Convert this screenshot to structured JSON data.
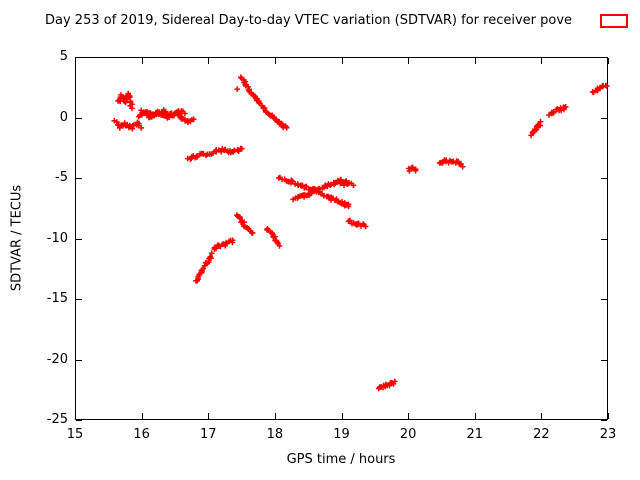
{
  "chart_data": {
    "type": "scatter",
    "title": "Day 253 of 2019, Sidereal Day-to-day VTEC variation (SDTVAR) for receiver pove",
    "xlabel": "GPS time / hours",
    "ylabel": "SDTVAR / TECUs",
    "xlim": [
      15,
      23
    ],
    "ylim": [
      -25,
      5
    ],
    "xticks": [
      15,
      16,
      17,
      18,
      19,
      20,
      21,
      22,
      23
    ],
    "yticks": [
      5,
      0,
      -5,
      -10,
      -15,
      -20,
      -25
    ],
    "grid": false,
    "marker": "+",
    "marker_color": "#ff0000",
    "axis_color": "#000000",
    "legend_position": "top-right-outside",
    "segments": [
      {
        "spread": 0.22,
        "pts": [
          [
            15.66,
            1.15
          ],
          [
            15.7,
            1.85
          ],
          [
            15.75,
            1.35
          ],
          [
            15.8,
            1.9
          ],
          [
            15.84,
            1.15
          ],
          [
            15.87,
            0.95
          ]
        ]
      },
      {
        "spread": 0.16,
        "pts": [
          [
            15.6,
            -0.4
          ],
          [
            15.68,
            -0.7
          ],
          [
            15.76,
            -0.55
          ],
          [
            15.85,
            -0.8
          ],
          [
            15.93,
            -0.55
          ],
          [
            15.99,
            -0.7
          ]
        ]
      },
      {
        "spread": 0.12,
        "pts": [
          [
            15.97,
            0.05
          ],
          [
            16.08,
            0.5
          ],
          [
            16.2,
            0.15
          ],
          [
            16.33,
            0.52
          ],
          [
            16.46,
            0.18
          ],
          [
            16.56,
            0.48
          ],
          [
            16.64,
            0.38
          ]
        ]
      },
      {
        "spread": 0.12,
        "pts": [
          [
            16.0,
            0.5
          ],
          [
            16.12,
            0.05
          ],
          [
            16.25,
            0.45
          ],
          [
            16.38,
            0.0
          ],
          [
            16.5,
            0.38
          ],
          [
            16.6,
            -0.05
          ],
          [
            16.7,
            -0.38
          ],
          [
            16.79,
            -0.15
          ]
        ]
      },
      {
        "spread": 0.12,
        "pts": [
          [
            16.7,
            -3.35
          ],
          [
            16.81,
            -3.22
          ],
          [
            16.92,
            -3.05
          ],
          [
            16.99,
            -3.0
          ]
        ]
      },
      {
        "spread": 0.12,
        "pts": [
          [
            17.03,
            -2.95
          ],
          [
            17.13,
            -2.78
          ],
          [
            17.23,
            -2.68
          ],
          [
            17.33,
            -2.85
          ],
          [
            17.43,
            -2.7
          ],
          [
            17.5,
            -2.6
          ]
        ]
      },
      {
        "spread": 0,
        "pts": [
          [
            17.42,
            2.35
          ]
        ]
      },
      {
        "spread": 0.1,
        "pts": [
          [
            17.5,
            3.3
          ],
          [
            17.56,
            2.75
          ],
          [
            17.63,
            2.15
          ],
          [
            17.72,
            1.5
          ],
          [
            17.82,
            0.85
          ],
          [
            17.92,
            0.3
          ],
          [
            18.02,
            -0.2
          ],
          [
            18.12,
            -0.65
          ],
          [
            18.18,
            -0.88
          ]
        ]
      },
      {
        "spread": 0.12,
        "pts": [
          [
            16.82,
            -13.6
          ],
          [
            16.9,
            -12.8
          ],
          [
            16.98,
            -12.0
          ],
          [
            17.05,
            -11.3
          ]
        ]
      },
      {
        "spread": 0.15,
        "pts": [
          [
            17.08,
            -10.8
          ],
          [
            17.16,
            -10.55
          ],
          [
            17.26,
            -10.45
          ],
          [
            17.37,
            -10.2
          ]
        ]
      },
      {
        "spread": 0.12,
        "pts": [
          [
            17.42,
            -8.05
          ],
          [
            17.5,
            -8.55
          ],
          [
            17.58,
            -9.1
          ],
          [
            17.66,
            -9.55
          ]
        ]
      },
      {
        "spread": 0.12,
        "pts": [
          [
            17.88,
            -9.15
          ],
          [
            17.96,
            -9.7
          ],
          [
            18.03,
            -10.3
          ],
          [
            18.06,
            -10.5
          ]
        ]
      },
      {
        "spread": 0.12,
        "pts": [
          [
            18.06,
            -4.95
          ],
          [
            18.25,
            -5.3
          ],
          [
            18.45,
            -5.75
          ],
          [
            18.65,
            -6.2
          ],
          [
            18.85,
            -6.7
          ],
          [
            19.0,
            -7.05
          ],
          [
            19.1,
            -7.3
          ]
        ]
      },
      {
        "spread": 0.12,
        "pts": [
          [
            18.28,
            -6.8
          ],
          [
            18.44,
            -6.45
          ],
          [
            18.6,
            -6.08
          ],
          [
            18.75,
            -5.7
          ],
          [
            18.9,
            -5.35
          ],
          [
            19.0,
            -5.2
          ],
          [
            19.1,
            -5.45
          ],
          [
            19.17,
            -5.62
          ]
        ]
      },
      {
        "spread": 0.28,
        "pts": [
          [
            18.52,
            -6.18
          ],
          [
            18.62,
            -6.12
          ]
        ]
      },
      {
        "spread": 0.22,
        "pts": [
          [
            18.98,
            -5.3
          ],
          [
            19.07,
            -5.45
          ]
        ]
      },
      {
        "spread": 0.22,
        "pts": [
          [
            19.03,
            -7.1
          ],
          [
            19.11,
            -7.3
          ]
        ]
      },
      {
        "spread": 0.14,
        "pts": [
          [
            19.1,
            -8.6
          ],
          [
            19.22,
            -8.8
          ],
          [
            19.36,
            -9.0
          ]
        ]
      },
      {
        "spread": 0.12,
        "pts": [
          [
            19.55,
            -22.35
          ],
          [
            19.63,
            -22.25
          ],
          [
            19.72,
            -22.05
          ],
          [
            19.8,
            -21.9
          ]
        ]
      },
      {
        "spread": 0.16,
        "pts": [
          [
            20.0,
            -4.35
          ],
          [
            20.06,
            -4.2
          ],
          [
            20.12,
            -4.3
          ]
        ]
      },
      {
        "spread": 0.14,
        "pts": [
          [
            20.48,
            -3.85
          ],
          [
            20.56,
            -3.62
          ],
          [
            20.66,
            -3.7
          ],
          [
            20.76,
            -3.75
          ],
          [
            20.83,
            -3.95
          ]
        ]
      },
      {
        "spread": 0.12,
        "pts": [
          [
            21.84,
            -1.45
          ],
          [
            21.9,
            -1.05
          ],
          [
            21.96,
            -0.65
          ],
          [
            22.0,
            -0.45
          ]
        ]
      },
      {
        "spread": 0.12,
        "pts": [
          [
            22.12,
            0.3
          ],
          [
            22.2,
            0.5
          ],
          [
            22.3,
            0.7
          ],
          [
            22.38,
            0.85
          ]
        ]
      },
      {
        "spread": 0.12,
        "pts": [
          [
            22.77,
            2.1
          ],
          [
            22.85,
            2.35
          ],
          [
            22.93,
            2.55
          ],
          [
            22.98,
            2.65
          ]
        ]
      }
    ]
  }
}
